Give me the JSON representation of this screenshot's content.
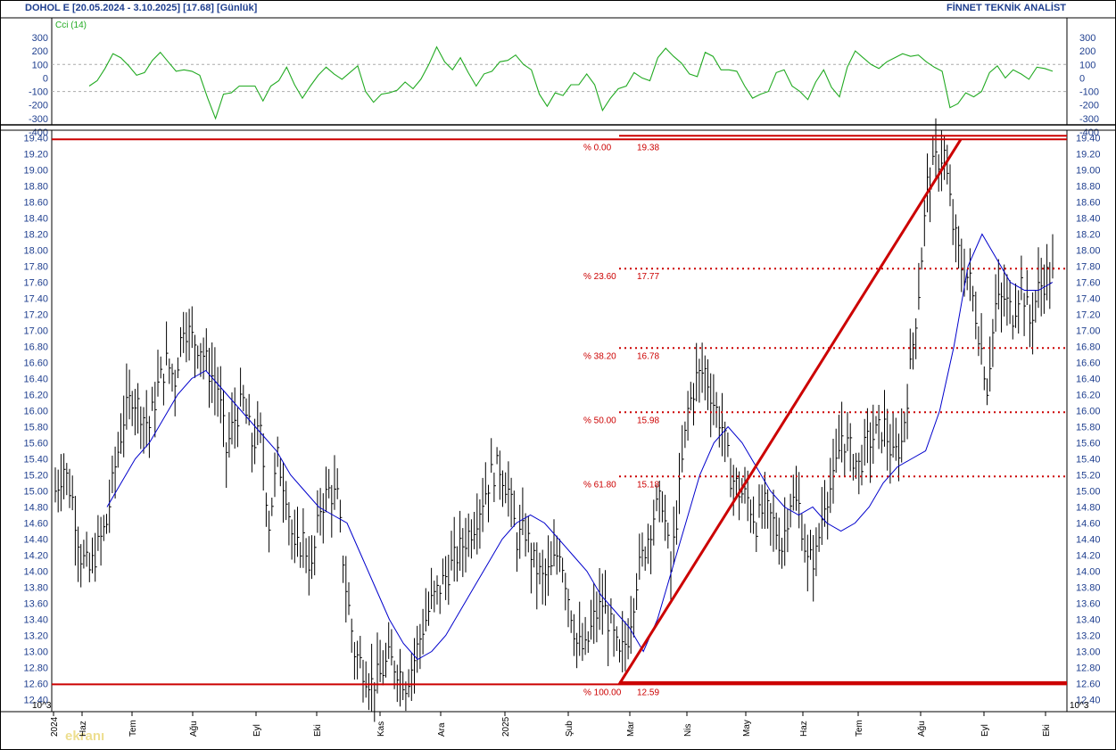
{
  "header": {
    "title": "DOHOL E  [20.05.2024 - 3.10.2025]  [17.68]  [Günlük]",
    "brand": "FİNNET TEKNİK ANALİST"
  },
  "watermark": "ekranı",
  "colors": {
    "price_bars": "#000000",
    "moving_average": "#0000cc",
    "cci": "#22aa22",
    "fibonacci": "#cc0000",
    "axis_text": "#1f3f8f",
    "grid": "#b0b0b0"
  },
  "chart_data": [
    {
      "type": "line",
      "title": "Cci (14)",
      "ylim": [
        -400,
        300
      ],
      "y_ticks": [
        "300",
        "200",
        "100",
        "0",
        "-100",
        "-200",
        "-300",
        "-400"
      ],
      "reference_lines": [
        100,
        -100
      ],
      "series": [
        {
          "name": "Cci (14)",
          "values": [
            -60,
            -20,
            70,
            180,
            150,
            90,
            20,
            40,
            130,
            190,
            120,
            50,
            60,
            50,
            20,
            -150,
            -300,
            -120,
            -110,
            -60,
            -60,
            -60,
            -170,
            -60,
            -20,
            80,
            -50,
            -150,
            -60,
            20,
            80,
            30,
            -10,
            40,
            90,
            -100,
            -180,
            -120,
            -110,
            -90,
            -30,
            -80,
            -10,
            100,
            230,
            120,
            60,
            150,
            40,
            -60,
            30,
            50,
            120,
            130,
            170,
            100,
            60,
            -120,
            -210,
            -110,
            -130,
            -50,
            -50,
            30,
            -50,
            -240,
            -150,
            -80,
            -60,
            40,
            0,
            -20,
            150,
            220,
            160,
            110,
            30,
            10,
            190,
            160,
            60,
            60,
            50,
            -60,
            -150,
            -120,
            -100,
            40,
            60,
            -60,
            -100,
            -160,
            -30,
            60,
            -70,
            -140,
            80,
            200,
            150,
            100,
            70,
            120,
            150,
            180,
            160,
            170,
            120,
            80,
            50,
            -220,
            -190,
            -110,
            -140,
            -100,
            40,
            90,
            0,
            60,
            30,
            -10,
            80,
            70,
            50
          ]
        }
      ]
    },
    {
      "type": "bar",
      "subtype": "ohlc",
      "title": "DOHOL E",
      "ylim": [
        12.3,
        19.5
      ],
      "y_ticks": [
        "19.40",
        "19.20",
        "19.00",
        "18.80",
        "18.60",
        "18.40",
        "18.20",
        "18.00",
        "17.80",
        "17.60",
        "17.40",
        "17.20",
        "17.00",
        "16.80",
        "16.60",
        "16.40",
        "16.20",
        "16.00",
        "15.80",
        "15.60",
        "15.40",
        "15.20",
        "15.00",
        "14.80",
        "14.60",
        "14.40",
        "14.20",
        "14.00",
        "13.80",
        "13.60",
        "13.40",
        "13.20",
        "13.00",
        "12.80",
        "12.60",
        "12.40"
      ],
      "x_ticks": [
        "2024",
        "Haz",
        "Tem",
        "Ağu",
        "Eyl",
        "Eki",
        "Kas",
        "Ara",
        "2025",
        "Şub",
        "Mar",
        "Nis",
        "May",
        "Haz",
        "Tem",
        "Ağu",
        "Eyl",
        "Eki"
      ],
      "scale_note": "10^3",
      "close": [
        15.0,
        15.3,
        14.9,
        14.2,
        14.0,
        14.3,
        14.6,
        15.3,
        15.9,
        16.2,
        16.0,
        15.8,
        16.3,
        16.6,
        16.4,
        17.1,
        16.9,
        16.8,
        16.5,
        16.3,
        15.5,
        15.9,
        16.1,
        15.6,
        15.7,
        14.6,
        15.4,
        15.0,
        14.2,
        14.4,
        14.0,
        14.8,
        15.0,
        14.9,
        13.8,
        13.0,
        12.8,
        12.6,
        12.7,
        12.9,
        12.8,
        12.6,
        12.9,
        13.3,
        13.6,
        13.8,
        14.0,
        14.2,
        14.4,
        14.6,
        14.9,
        15.2,
        15.3,
        15.0,
        14.4,
        14.5,
        14.1,
        13.9,
        14.0,
        14.3,
        13.7,
        13.1,
        13.0,
        13.4,
        13.6,
        13.3,
        12.9,
        13.2,
        13.9,
        14.3,
        14.7,
        14.9,
        14.0,
        15.0,
        16.0,
        16.4,
        16.5,
        16.1,
        15.8,
        15.2,
        15.0,
        14.9,
        14.6,
        14.8,
        14.6,
        14.3,
        14.9,
        14.8,
        14.1,
        14.2,
        14.9,
        15.1,
        15.7,
        15.5,
        15.3,
        15.6,
        15.7,
        15.8,
        15.4,
        15.6,
        16.5,
        17.5,
        18.8,
        19.1,
        19.2,
        18.3,
        17.8,
        17.6,
        17.0,
        16.3,
        17.3,
        17.4,
        17.2,
        17.6,
        17.1,
        17.5,
        17.68
      ],
      "ma": [
        14.8,
        15.1,
        15.4,
        15.6,
        15.9,
        16.2,
        16.4,
        16.5,
        16.3,
        16.1,
        15.9,
        15.7,
        15.5,
        15.2,
        15.0,
        14.8,
        14.7,
        14.6,
        14.2,
        13.8,
        13.4,
        13.1,
        12.9,
        13.0,
        13.2,
        13.5,
        13.8,
        14.1,
        14.4,
        14.6,
        14.7,
        14.6,
        14.4,
        14.2,
        14.0,
        13.7,
        13.5,
        13.3,
        13.0,
        13.4,
        14.0,
        14.6,
        15.2,
        15.6,
        15.8,
        15.6,
        15.3,
        15.0,
        14.8,
        14.7,
        14.8,
        14.6,
        14.5,
        14.6,
        14.8,
        15.1,
        15.3,
        15.4,
        15.5,
        16.0,
        16.8,
        17.8,
        18.2,
        17.9,
        17.6,
        17.5,
        17.5,
        17.6
      ],
      "fibonacci": [
        {
          "label": "% 0.00",
          "value": "19.38"
        },
        {
          "label": "% 23.60",
          "value": "17.77"
        },
        {
          "label": "% 38.20",
          "value": "16.78"
        },
        {
          "label": "% 50.00",
          "value": "15.98"
        },
        {
          "label": "% 61.80",
          "value": "15.18"
        },
        {
          "label": "% 100.00",
          "value": "12.59"
        }
      ],
      "levels": [
        19.38,
        17.77,
        16.78,
        15.98,
        15.18,
        12.59
      ]
    }
  ]
}
